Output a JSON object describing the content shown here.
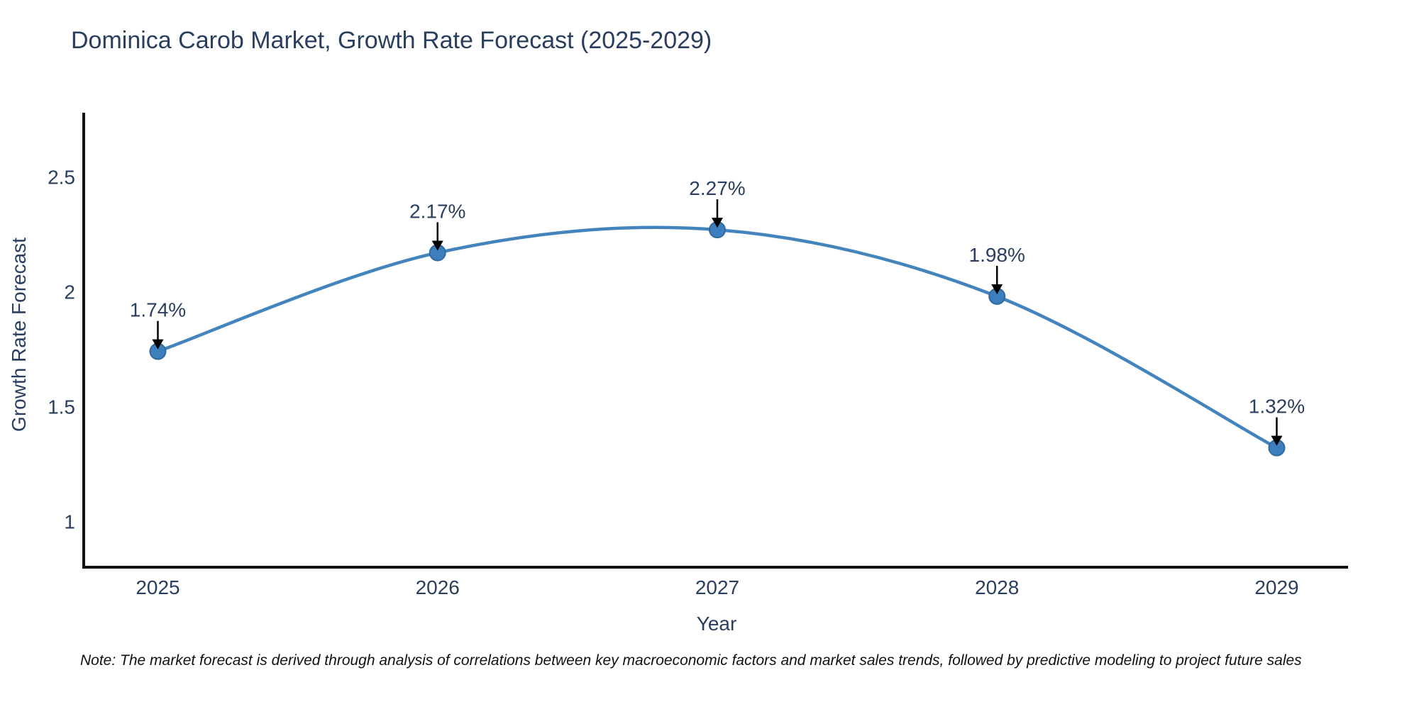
{
  "title": "Dominica Carob Market, Growth Rate Forecast (2025-2029)",
  "note": "Note: The market forecast is derived through analysis of correlations between key macroeconomic factors and market sales trends, followed by predictive modeling to project future sales",
  "chart_data": {
    "type": "line",
    "title": "Dominica Carob Market, Growth Rate Forecast (2025-2029)",
    "xlabel": "Year",
    "ylabel": "Growth Rate Forecast",
    "categories": [
      "2025",
      "2026",
      "2027",
      "2028",
      "2029"
    ],
    "x": [
      2025,
      2026,
      2027,
      2028,
      2029
    ],
    "values": [
      1.74,
      2.17,
      2.27,
      1.98,
      1.32
    ],
    "point_labels": [
      "1.74%",
      "2.17%",
      "2.27%",
      "1.98%",
      "1.32%"
    ],
    "yticks": [
      1,
      1.5,
      2,
      2.5
    ],
    "xlim": [
      2024.735,
      2029.255
    ],
    "ylim": [
      0.8,
      2.78
    ],
    "grid": false,
    "legend": null,
    "line_shape": "spline",
    "marker": "circle",
    "colors": {
      "line": "#4484bd",
      "marker_fill": "#3d7ebd",
      "marker_edge": "#336a9e",
      "axis_line": "#111111",
      "tick_text": "#2a3f5f",
      "annotation_text": "#2a3f5f",
      "annotation_arrow": "#000000"
    }
  }
}
